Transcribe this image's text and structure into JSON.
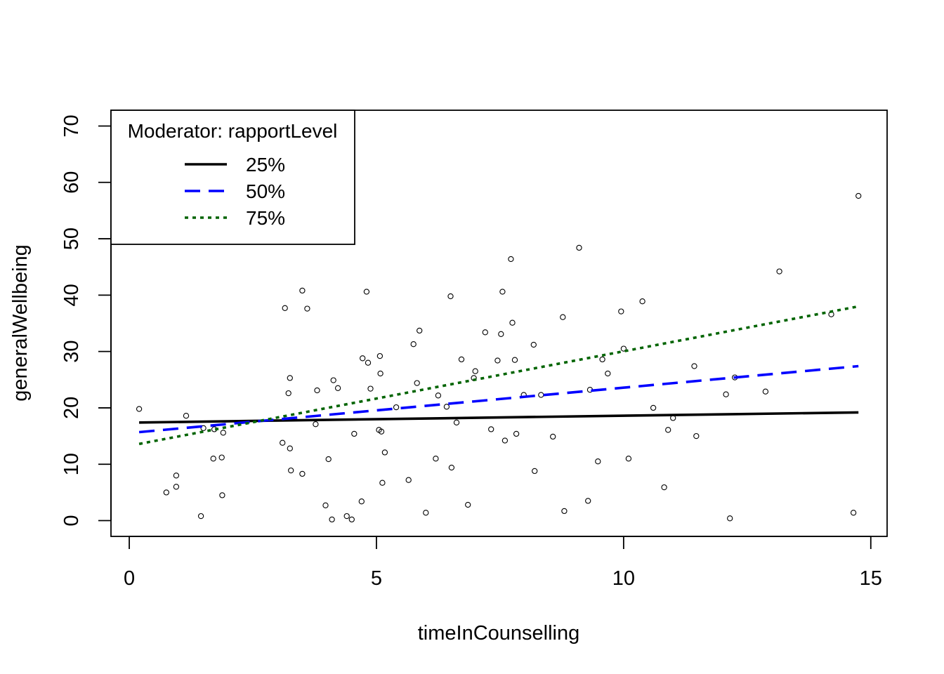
{
  "chart_data": {
    "type": "scatter",
    "xlabel": "timeInCounselling",
    "ylabel": "generalWellbeing",
    "xlim": [
      -0.37,
      15.33
    ],
    "ylim": [
      -2.8,
      72.8
    ],
    "x_ticks": [
      0,
      5,
      10,
      15
    ],
    "y_ticks": [
      0,
      10,
      20,
      30,
      40,
      50,
      60,
      70
    ],
    "grid": false,
    "legend": {
      "title": "Moderator: rapportLevel",
      "position": "top-left"
    },
    "points": [
      [
        0.2,
        19.8
      ],
      [
        0.75,
        5.0
      ],
      [
        0.95,
        6.0
      ],
      [
        0.95,
        8.0
      ],
      [
        1.15,
        18.6
      ],
      [
        1.45,
        0.8
      ],
      [
        1.5,
        16.4
      ],
      [
        1.7,
        11.0
      ],
      [
        1.72,
        16.2
      ],
      [
        1.87,
        11.2
      ],
      [
        1.88,
        4.5
      ],
      [
        1.9,
        15.6
      ],
      [
        3.1,
        13.8
      ],
      [
        3.15,
        37.7
      ],
      [
        3.22,
        22.6
      ],
      [
        3.25,
        25.3
      ],
      [
        3.25,
        12.8
      ],
      [
        3.27,
        8.9
      ],
      [
        3.5,
        8.3
      ],
      [
        3.5,
        40.8
      ],
      [
        3.6,
        37.6
      ],
      [
        3.77,
        17.1
      ],
      [
        3.8,
        23.1
      ],
      [
        3.97,
        2.7
      ],
      [
        4.03,
        10.9
      ],
      [
        4.1,
        0.2
      ],
      [
        4.13,
        24.9
      ],
      [
        4.22,
        23.5
      ],
      [
        4.4,
        0.8
      ],
      [
        4.5,
        0.2
      ],
      [
        4.55,
        15.4
      ],
      [
        4.7,
        3.4
      ],
      [
        4.72,
        28.8
      ],
      [
        4.8,
        40.6
      ],
      [
        4.83,
        28.0
      ],
      [
        4.88,
        23.4
      ],
      [
        5.05,
        16.1
      ],
      [
        5.07,
        29.2
      ],
      [
        5.08,
        26.1
      ],
      [
        5.1,
        15.8
      ],
      [
        5.12,
        6.7
      ],
      [
        5.17,
        12.1
      ],
      [
        5.4,
        20.1
      ],
      [
        5.65,
        7.2
      ],
      [
        5.75,
        31.3
      ],
      [
        5.82,
        24.4
      ],
      [
        5.87,
        33.7
      ],
      [
        6.0,
        1.4
      ],
      [
        6.2,
        11.0
      ],
      [
        6.25,
        22.2
      ],
      [
        6.42,
        20.2
      ],
      [
        6.5,
        39.8
      ],
      [
        6.52,
        9.4
      ],
      [
        6.62,
        17.4
      ],
      [
        6.72,
        28.6
      ],
      [
        6.85,
        2.8
      ],
      [
        6.97,
        25.3
      ],
      [
        7.0,
        26.5
      ],
      [
        7.2,
        33.4
      ],
      [
        7.32,
        16.2
      ],
      [
        7.45,
        28.4
      ],
      [
        7.52,
        33.1
      ],
      [
        7.55,
        40.6
      ],
      [
        7.6,
        14.2
      ],
      [
        7.72,
        46.4
      ],
      [
        7.75,
        35.1
      ],
      [
        7.8,
        28.5
      ],
      [
        7.83,
        15.4
      ],
      [
        7.98,
        22.3
      ],
      [
        8.18,
        31.2
      ],
      [
        8.2,
        8.8
      ],
      [
        8.33,
        22.3
      ],
      [
        8.57,
        14.9
      ],
      [
        8.77,
        36.1
      ],
      [
        8.8,
        1.7
      ],
      [
        9.1,
        48.4
      ],
      [
        9.28,
        3.5
      ],
      [
        9.32,
        23.2
      ],
      [
        9.48,
        10.5
      ],
      [
        9.57,
        28.6
      ],
      [
        9.68,
        26.1
      ],
      [
        9.95,
        37.1
      ],
      [
        10.0,
        30.5
      ],
      [
        10.1,
        11.0
      ],
      [
        10.38,
        38.9
      ],
      [
        10.6,
        20.0
      ],
      [
        10.82,
        5.9
      ],
      [
        10.9,
        16.1
      ],
      [
        11.0,
        18.2
      ],
      [
        11.43,
        27.4
      ],
      [
        11.47,
        15.0
      ],
      [
        12.07,
        22.4
      ],
      [
        12.15,
        0.4
      ],
      [
        12.25,
        25.4
      ],
      [
        12.87,
        22.9
      ],
      [
        13.15,
        44.2
      ],
      [
        14.2,
        36.6
      ],
      [
        14.65,
        1.4
      ],
      [
        14.75,
        57.6
      ]
    ],
    "series": [
      {
        "name": "25%",
        "color": "#000000",
        "style": "solid",
        "x": [
          0.2,
          14.75
        ],
        "y": [
          17.4,
          19.2
        ]
      },
      {
        "name": "50%",
        "color": "#0000ff",
        "style": "dashed",
        "x": [
          0.2,
          14.75
        ],
        "y": [
          15.7,
          27.4
        ]
      },
      {
        "name": "75%",
        "color": "#006400",
        "style": "dotted",
        "x": [
          0.2,
          14.75
        ],
        "y": [
          13.6,
          38.0
        ]
      }
    ]
  }
}
